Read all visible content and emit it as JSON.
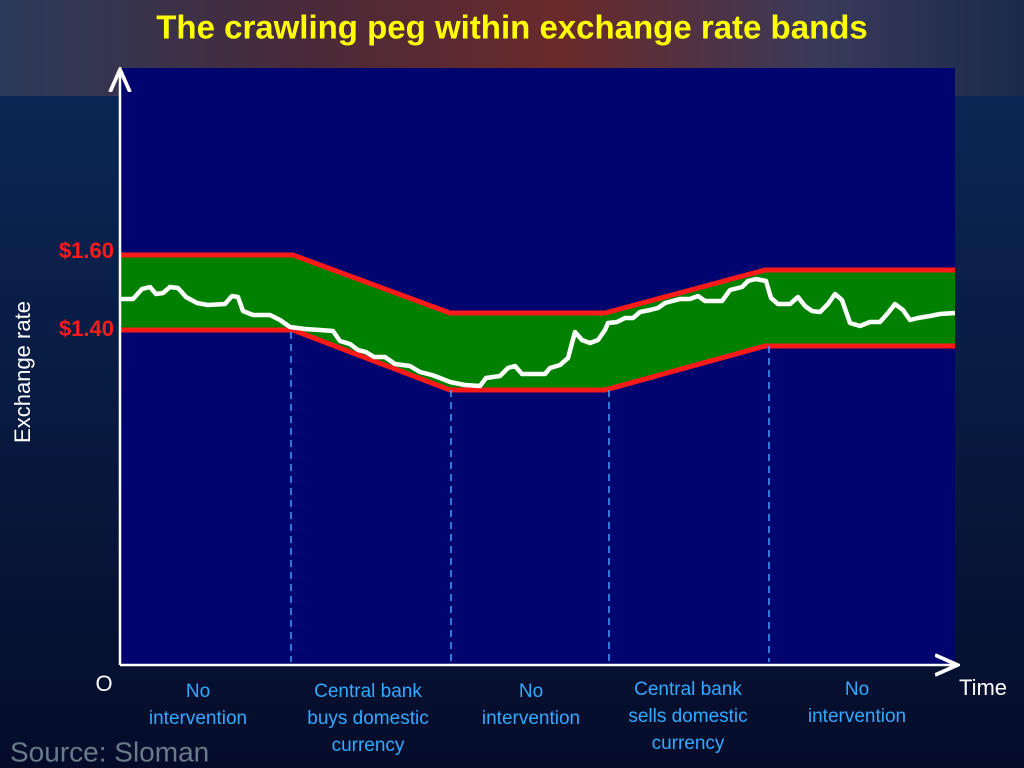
{
  "title": "The crawling peg within exchange rate bands",
  "rate_labels": [
    "$1.60",
    "$1.40"
  ],
  "axes": {
    "y_label": "Exchange rate",
    "origin": "O",
    "x_label": "Time"
  },
  "regions": [
    {
      "lines": [
        "No",
        "intervention"
      ]
    },
    {
      "lines": [
        "Central bank",
        "buys domestic",
        "currency"
      ]
    },
    {
      "lines": [
        "No",
        "intervention"
      ]
    },
    {
      "lines": [
        "Central bank",
        "sells domestic",
        "currency"
      ]
    },
    {
      "lines": [
        "No",
        "intervention"
      ]
    }
  ],
  "source": "Source: Sloman"
}
